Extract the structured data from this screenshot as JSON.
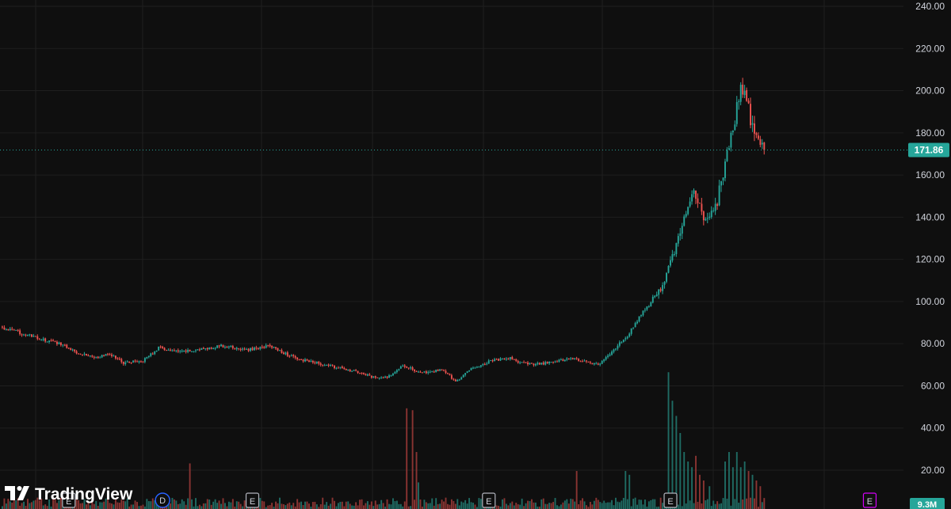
{
  "app": {
    "logo_text": "TradingView"
  },
  "colors": {
    "background": "#0f0f0f",
    "grid": "#1f1f1f",
    "up": "#26a69a",
    "down": "#ef5350",
    "up_volume": "#1f6b63",
    "down_volume": "#8a3432",
    "last_price_line": "#26a69a",
    "dividend_marker": "#2962ff",
    "earnings_future_marker": "#d500f9"
  },
  "price_axis": {
    "ticks": [
      "240.00",
      "220.00",
      "200.00",
      "180.00",
      "160.00",
      "140.00",
      "120.00",
      "100.00",
      "80.00",
      "60.00",
      "40.00",
      "20.00"
    ],
    "last_price_label": "171.86",
    "volume_label": "9.3M"
  },
  "events": {
    "dividend_label": "D",
    "earnings_label": "E"
  },
  "chart_data": {
    "type": "candlestick",
    "ylim": [
      0,
      241
    ],
    "grid": true,
    "last_price": 171.86,
    "last_volume": 9.3,
    "volume_unit": "M",
    "volume_ylim": [
      0,
      240
    ],
    "anchors": [
      {
        "i": 0,
        "p": 87.5
      },
      {
        "i": 10,
        "p": 85
      },
      {
        "i": 20,
        "p": 82
      },
      {
        "i": 30,
        "p": 80
      },
      {
        "i": 38,
        "p": 76
      },
      {
        "i": 48,
        "p": 73.5
      },
      {
        "i": 55,
        "p": 75
      },
      {
        "i": 62,
        "p": 71
      },
      {
        "i": 72,
        "p": 72
      },
      {
        "i": 80,
        "p": 78
      },
      {
        "i": 90,
        "p": 76
      },
      {
        "i": 100,
        "p": 77
      },
      {
        "i": 112,
        "p": 79
      },
      {
        "i": 125,
        "p": 77
      },
      {
        "i": 137,
        "p": 79
      },
      {
        "i": 150,
        "p": 73
      },
      {
        "i": 165,
        "p": 70
      },
      {
        "i": 180,
        "p": 67
      },
      {
        "i": 190,
        "p": 64
      },
      {
        "i": 197,
        "p": 64
      },
      {
        "i": 205,
        "p": 70
      },
      {
        "i": 212,
        "p": 67
      },
      {
        "i": 218,
        "p": 66
      },
      {
        "i": 225,
        "p": 68
      },
      {
        "i": 232,
        "p": 62
      },
      {
        "i": 240,
        "p": 68
      },
      {
        "i": 250,
        "p": 72
      },
      {
        "i": 260,
        "p": 73
      },
      {
        "i": 265,
        "p": 71
      },
      {
        "i": 272,
        "p": 70
      },
      {
        "i": 280,
        "p": 71
      },
      {
        "i": 290,
        "p": 73
      },
      {
        "i": 297,
        "p": 72
      },
      {
        "i": 305,
        "p": 70
      },
      {
        "i": 311,
        "p": 75
      },
      {
        "i": 320,
        "p": 84
      },
      {
        "i": 328,
        "p": 95
      },
      {
        "i": 336,
        "p": 104
      },
      {
        "i": 342,
        "p": 118
      },
      {
        "i": 348,
        "p": 136
      },
      {
        "i": 354,
        "p": 152
      },
      {
        "i": 360,
        "p": 138
      },
      {
        "i": 366,
        "p": 148
      },
      {
        "i": 373,
        "p": 178
      },
      {
        "i": 378,
        "p": 200
      },
      {
        "i": 381,
        "p": 195
      },
      {
        "i": 385,
        "p": 178
      },
      {
        "i": 390,
        "p": 172
      }
    ],
    "volume_spikes": [
      {
        "i": 96,
        "v": 24
      },
      {
        "i": 207,
        "v": 53
      },
      {
        "i": 210,
        "v": 52
      },
      {
        "i": 212,
        "v": 30
      },
      {
        "i": 213,
        "v": 14
      },
      {
        "i": 294,
        "v": 20
      },
      {
        "i": 319,
        "v": 20
      },
      {
        "i": 321,
        "v": 18
      },
      {
        "i": 341,
        "v": 72
      },
      {
        "i": 343,
        "v": 57
      },
      {
        "i": 345,
        "v": 49
      },
      {
        "i": 347,
        "v": 40
      },
      {
        "i": 349,
        "v": 30
      },
      {
        "i": 351,
        "v": 25
      },
      {
        "i": 353,
        "v": 22
      },
      {
        "i": 355,
        "v": 28
      },
      {
        "i": 357,
        "v": 18
      },
      {
        "i": 359,
        "v": 15
      },
      {
        "i": 362,
        "v": 12
      },
      {
        "i": 370,
        "v": 25
      },
      {
        "i": 372,
        "v": 30
      },
      {
        "i": 374,
        "v": 22
      },
      {
        "i": 376,
        "v": 30
      },
      {
        "i": 378,
        "v": 22
      },
      {
        "i": 380,
        "v": 25
      },
      {
        "i": 382,
        "v": 20
      },
      {
        "i": 384,
        "v": 18
      },
      {
        "i": 386,
        "v": 15
      },
      {
        "i": 388,
        "v": 12
      }
    ],
    "event_markers": [
      {
        "kind": "earnings",
        "i": 34
      },
      {
        "kind": "dividend",
        "i": 82
      },
      {
        "kind": "earnings",
        "i": 128
      },
      {
        "kind": "earnings",
        "i": 249
      },
      {
        "kind": "earnings",
        "i": 342
      },
      {
        "kind": "earnings_future",
        "i": 444
      }
    ],
    "bar_count": 391
  }
}
